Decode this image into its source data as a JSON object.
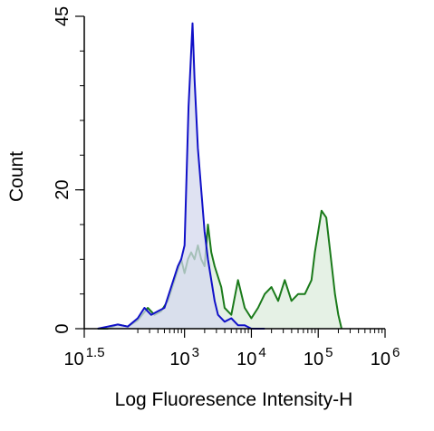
{
  "chart_data": {
    "type": "area",
    "xlabel": "Log Fluoresence Intensity-H",
    "ylabel": "Count",
    "x_scale": "log10",
    "xlim": [
      1.5,
      6
    ],
    "ylim": [
      0,
      45
    ],
    "x_ticks": [
      {
        "value": 1.5,
        "base": "10",
        "exp": "1.5"
      },
      {
        "value": 3,
        "base": "10",
        "exp": "3"
      },
      {
        "value": 4,
        "base": "10",
        "exp": "4"
      },
      {
        "value": 5,
        "base": "10",
        "exp": "5"
      },
      {
        "value": 6,
        "base": "10",
        "exp": "6"
      }
    ],
    "y_ticks": [
      {
        "value": 0,
        "label": "0"
      },
      {
        "value": 20,
        "label": "20"
      },
      {
        "value": 45,
        "label": "45"
      }
    ],
    "grid": false,
    "series": [
      {
        "color": "#1a7a1a",
        "fill": "#dcecdc",
        "points": [
          [
            1.7,
            0
          ],
          [
            1.85,
            0
          ],
          [
            2.0,
            0.6
          ],
          [
            2.15,
            0.3
          ],
          [
            2.3,
            1.2
          ],
          [
            2.45,
            3
          ],
          [
            2.55,
            2
          ],
          [
            2.65,
            2.5
          ],
          [
            2.75,
            4
          ],
          [
            2.85,
            7
          ],
          [
            2.95,
            10
          ],
          [
            3.0,
            8
          ],
          [
            3.05,
            10
          ],
          [
            3.1,
            11
          ],
          [
            3.15,
            10
          ],
          [
            3.2,
            12
          ],
          [
            3.25,
            10
          ],
          [
            3.3,
            9
          ],
          [
            3.35,
            15
          ],
          [
            3.4,
            11
          ],
          [
            3.45,
            9
          ],
          [
            3.55,
            6
          ],
          [
            3.6,
            3
          ],
          [
            3.7,
            2
          ],
          [
            3.8,
            7
          ],
          [
            3.9,
            3
          ],
          [
            4.0,
            1.5
          ],
          [
            4.1,
            3
          ],
          [
            4.2,
            5
          ],
          [
            4.3,
            6
          ],
          [
            4.4,
            4
          ],
          [
            4.5,
            7
          ],
          [
            4.6,
            4
          ],
          [
            4.7,
            5
          ],
          [
            4.8,
            5
          ],
          [
            4.9,
            7
          ],
          [
            4.95,
            11
          ],
          [
            5.0,
            14
          ],
          [
            5.05,
            17
          ],
          [
            5.12,
            16
          ],
          [
            5.18,
            11
          ],
          [
            5.25,
            5
          ],
          [
            5.3,
            2
          ],
          [
            5.35,
            0
          ]
        ]
      },
      {
        "color": "#1010c8",
        "fill": "#d4d8ee",
        "points": [
          [
            1.7,
            0
          ],
          [
            1.85,
            0.3
          ],
          [
            2.0,
            0.6
          ],
          [
            2.15,
            0.3
          ],
          [
            2.3,
            1.5
          ],
          [
            2.4,
            3
          ],
          [
            2.5,
            2
          ],
          [
            2.6,
            2.5
          ],
          [
            2.7,
            3
          ],
          [
            2.8,
            6
          ],
          [
            2.9,
            9
          ],
          [
            2.95,
            10
          ],
          [
            3.0,
            12
          ],
          [
            3.03,
            22
          ],
          [
            3.06,
            32
          ],
          [
            3.09,
            38
          ],
          [
            3.12,
            44
          ],
          [
            3.15,
            36
          ],
          [
            3.2,
            26
          ],
          [
            3.25,
            20
          ],
          [
            3.3,
            14
          ],
          [
            3.35,
            10
          ],
          [
            3.4,
            7
          ],
          [
            3.45,
            4
          ],
          [
            3.5,
            2
          ],
          [
            3.6,
            1
          ],
          [
            3.7,
            1.5
          ],
          [
            3.8,
            0.5
          ],
          [
            3.9,
            0.5
          ],
          [
            4.0,
            0
          ],
          [
            4.2,
            0
          ]
        ]
      }
    ]
  }
}
